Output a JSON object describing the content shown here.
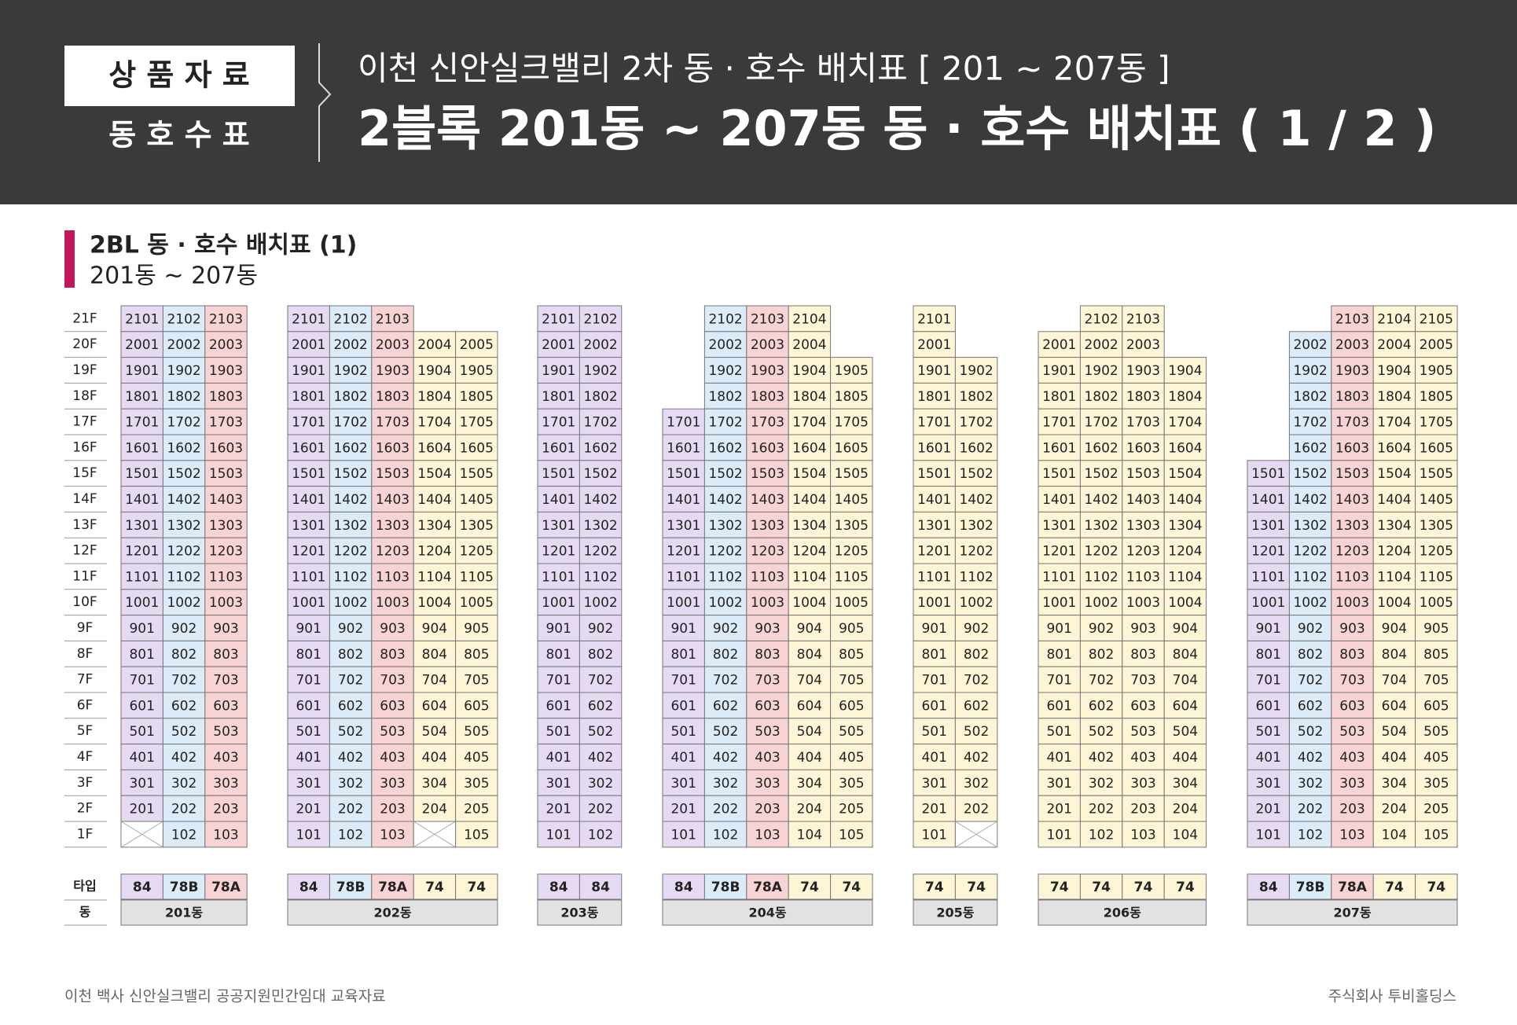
{
  "header": {
    "badge_top": "상 품 자 료",
    "badge_bottom": "동 호 수 표",
    "title": "이천 신안실크밸리 2차 동 · 호수 배치표 [ 201 ~ 207동 ]",
    "subtitle": "2블록 201동 ~ 207동 동 · 호수 배치표 ( 1 / 2 )"
  },
  "section": {
    "title": "2BL 동 · 호수 배치표 (1)",
    "subtitle": "201동 ~ 207동"
  },
  "floors": [
    "21F",
    "20F",
    "19F",
    "18F",
    "17F",
    "16F",
    "15F",
    "14F",
    "13F",
    "12F",
    "11F",
    "10F",
    "9F",
    "8F",
    "7F",
    "6F",
    "5F",
    "4F",
    "3F",
    "2F",
    "1F"
  ],
  "type_label": "타입",
  "building_label": "동",
  "type_colors": {
    "84": "#e6daf2",
    "78B": "#dbebf8",
    "78A": "#f7d3d3",
    "74": "#fdf5d6"
  },
  "buildings": [
    {
      "name": "201동",
      "types": [
        "84",
        "78B",
        "78A"
      ],
      "blocked": [
        [
          20,
          0
        ]
      ],
      "units": [
        [
          "2101",
          "2102",
          "2103"
        ],
        [
          "2001",
          "2002",
          "2003"
        ],
        [
          "1901",
          "1902",
          "1903"
        ],
        [
          "1801",
          "1802",
          "1803"
        ],
        [
          "1701",
          "1702",
          "1703"
        ],
        [
          "1601",
          "1602",
          "1603"
        ],
        [
          "1501",
          "1502",
          "1503"
        ],
        [
          "1401",
          "1402",
          "1403"
        ],
        [
          "1301",
          "1302",
          "1303"
        ],
        [
          "1201",
          "1202",
          "1203"
        ],
        [
          "1101",
          "1102",
          "1103"
        ],
        [
          "1001",
          "1002",
          "1003"
        ],
        [
          "901",
          "902",
          "903"
        ],
        [
          "801",
          "802",
          "803"
        ],
        [
          "701",
          "702",
          "703"
        ],
        [
          "601",
          "602",
          "603"
        ],
        [
          "501",
          "502",
          "503"
        ],
        [
          "401",
          "402",
          "403"
        ],
        [
          "301",
          "302",
          "303"
        ],
        [
          "201",
          "202",
          "203"
        ],
        [
          null,
          "102",
          "103"
        ]
      ]
    },
    {
      "name": "202동",
      "types": [
        "84",
        "78B",
        "78A",
        "74",
        "74"
      ],
      "blocked": [
        [
          20,
          3
        ]
      ],
      "units": [
        [
          "2101",
          "2102",
          "2103",
          null,
          null
        ],
        [
          "2001",
          "2002",
          "2003",
          "2004",
          "2005"
        ],
        [
          "1901",
          "1902",
          "1903",
          "1904",
          "1905"
        ],
        [
          "1801",
          "1802",
          "1803",
          "1804",
          "1805"
        ],
        [
          "1701",
          "1702",
          "1703",
          "1704",
          "1705"
        ],
        [
          "1601",
          "1602",
          "1603",
          "1604",
          "1605"
        ],
        [
          "1501",
          "1502",
          "1503",
          "1504",
          "1505"
        ],
        [
          "1401",
          "1402",
          "1403",
          "1404",
          "1405"
        ],
        [
          "1301",
          "1302",
          "1303",
          "1304",
          "1305"
        ],
        [
          "1201",
          "1202",
          "1203",
          "1204",
          "1205"
        ],
        [
          "1101",
          "1102",
          "1103",
          "1104",
          "1105"
        ],
        [
          "1001",
          "1002",
          "1003",
          "1004",
          "1005"
        ],
        [
          "901",
          "902",
          "903",
          "904",
          "905"
        ],
        [
          "801",
          "802",
          "803",
          "804",
          "805"
        ],
        [
          "701",
          "702",
          "703",
          "704",
          "705"
        ],
        [
          "601",
          "602",
          "603",
          "604",
          "605"
        ],
        [
          "501",
          "502",
          "503",
          "504",
          "505"
        ],
        [
          "401",
          "402",
          "403",
          "404",
          "405"
        ],
        [
          "301",
          "302",
          "303",
          "304",
          "305"
        ],
        [
          "201",
          "202",
          "203",
          "204",
          "205"
        ],
        [
          "101",
          "102",
          "103",
          null,
          "105"
        ]
      ]
    },
    {
      "name": "203동",
      "types": [
        "84",
        "84"
      ],
      "blocked": [],
      "units": [
        [
          "2101",
          "2102"
        ],
        [
          "2001",
          "2002"
        ],
        [
          "1901",
          "1902"
        ],
        [
          "1801",
          "1802"
        ],
        [
          "1701",
          "1702"
        ],
        [
          "1601",
          "1602"
        ],
        [
          "1501",
          "1502"
        ],
        [
          "1401",
          "1402"
        ],
        [
          "1301",
          "1302"
        ],
        [
          "1201",
          "1202"
        ],
        [
          "1101",
          "1102"
        ],
        [
          "1001",
          "1002"
        ],
        [
          "901",
          "902"
        ],
        [
          "801",
          "802"
        ],
        [
          "701",
          "702"
        ],
        [
          "601",
          "602"
        ],
        [
          "501",
          "502"
        ],
        [
          "401",
          "402"
        ],
        [
          "301",
          "302"
        ],
        [
          "201",
          "202"
        ],
        [
          "101",
          "102"
        ]
      ]
    },
    {
      "name": "204동",
      "types": [
        "84",
        "78B",
        "78A",
        "74",
        "74"
      ],
      "blocked": [],
      "units": [
        [
          null,
          "2102",
          "2103",
          "2104",
          null
        ],
        [
          null,
          "2002",
          "2003",
          "2004",
          null
        ],
        [
          null,
          "1902",
          "1903",
          "1904",
          "1905"
        ],
        [
          null,
          "1802",
          "1803",
          "1804",
          "1805"
        ],
        [
          "1701",
          "1702",
          "1703",
          "1704",
          "1705"
        ],
        [
          "1601",
          "1602",
          "1603",
          "1604",
          "1605"
        ],
        [
          "1501",
          "1502",
          "1503",
          "1504",
          "1505"
        ],
        [
          "1401",
          "1402",
          "1403",
          "1404",
          "1405"
        ],
        [
          "1301",
          "1302",
          "1303",
          "1304",
          "1305"
        ],
        [
          "1201",
          "1202",
          "1203",
          "1204",
          "1205"
        ],
        [
          "1101",
          "1102",
          "1103",
          "1104",
          "1105"
        ],
        [
          "1001",
          "1002",
          "1003",
          "1004",
          "1005"
        ],
        [
          "901",
          "902",
          "903",
          "904",
          "905"
        ],
        [
          "801",
          "802",
          "803",
          "804",
          "805"
        ],
        [
          "701",
          "702",
          "703",
          "704",
          "705"
        ],
        [
          "601",
          "602",
          "603",
          "604",
          "605"
        ],
        [
          "501",
          "502",
          "503",
          "504",
          "505"
        ],
        [
          "401",
          "402",
          "403",
          "404",
          "405"
        ],
        [
          "301",
          "302",
          "303",
          "304",
          "305"
        ],
        [
          "201",
          "202",
          "203",
          "204",
          "205"
        ],
        [
          "101",
          "102",
          "103",
          "104",
          "105"
        ]
      ]
    },
    {
      "name": "205동",
      "types": [
        "74",
        "74"
      ],
      "blocked": [
        [
          20,
          1
        ]
      ],
      "units": [
        [
          "2101",
          null
        ],
        [
          "2001",
          null
        ],
        [
          "1901",
          "1902"
        ],
        [
          "1801",
          "1802"
        ],
        [
          "1701",
          "1702"
        ],
        [
          "1601",
          "1602"
        ],
        [
          "1501",
          "1502"
        ],
        [
          "1401",
          "1402"
        ],
        [
          "1301",
          "1302"
        ],
        [
          "1201",
          "1202"
        ],
        [
          "1101",
          "1102"
        ],
        [
          "1001",
          "1002"
        ],
        [
          "901",
          "902"
        ],
        [
          "801",
          "802"
        ],
        [
          "701",
          "702"
        ],
        [
          "601",
          "602"
        ],
        [
          "501",
          "502"
        ],
        [
          "401",
          "402"
        ],
        [
          "301",
          "302"
        ],
        [
          "201",
          "202"
        ],
        [
          "101",
          null
        ]
      ]
    },
    {
      "name": "206동",
      "types": [
        "74",
        "74",
        "74",
        "74"
      ],
      "blocked": [],
      "units": [
        [
          null,
          "2102",
          "2103",
          null
        ],
        [
          "2001",
          "2002",
          "2003",
          null
        ],
        [
          "1901",
          "1902",
          "1903",
          "1904"
        ],
        [
          "1801",
          "1802",
          "1803",
          "1804"
        ],
        [
          "1701",
          "1702",
          "1703",
          "1704"
        ],
        [
          "1601",
          "1602",
          "1603",
          "1604"
        ],
        [
          "1501",
          "1502",
          "1503",
          "1504"
        ],
        [
          "1401",
          "1402",
          "1403",
          "1404"
        ],
        [
          "1301",
          "1302",
          "1303",
          "1304"
        ],
        [
          "1201",
          "1202",
          "1203",
          "1204"
        ],
        [
          "1101",
          "1102",
          "1103",
          "1104"
        ],
        [
          "1001",
          "1002",
          "1003",
          "1004"
        ],
        [
          "901",
          "902",
          "903",
          "904"
        ],
        [
          "801",
          "802",
          "803",
          "804"
        ],
        [
          "701",
          "702",
          "703",
          "704"
        ],
        [
          "601",
          "602",
          "603",
          "604"
        ],
        [
          "501",
          "502",
          "503",
          "504"
        ],
        [
          "401",
          "402",
          "403",
          "404"
        ],
        [
          "301",
          "302",
          "303",
          "304"
        ],
        [
          "201",
          "202",
          "203",
          "204"
        ],
        [
          "101",
          "102",
          "103",
          "104"
        ]
      ]
    },
    {
      "name": "207동",
      "types": [
        "84",
        "78B",
        "78A",
        "74",
        "74"
      ],
      "blocked": [],
      "units": [
        [
          null,
          null,
          "2103",
          "2104",
          "2105"
        ],
        [
          null,
          "2002",
          "2003",
          "2004",
          "2005"
        ],
        [
          null,
          "1902",
          "1903",
          "1904",
          "1905"
        ],
        [
          null,
          "1802",
          "1803",
          "1804",
          "1805"
        ],
        [
          null,
          "1702",
          "1703",
          "1704",
          "1705"
        ],
        [
          null,
          "1602",
          "1603",
          "1604",
          "1605"
        ],
        [
          "1501",
          "1502",
          "1503",
          "1504",
          "1505"
        ],
        [
          "1401",
          "1402",
          "1403",
          "1404",
          "1405"
        ],
        [
          "1301",
          "1302",
          "1303",
          "1304",
          "1305"
        ],
        [
          "1201",
          "1202",
          "1203",
          "1204",
          "1205"
        ],
        [
          "1101",
          "1102",
          "1103",
          "1104",
          "1105"
        ],
        [
          "1001",
          "1002",
          "1003",
          "1004",
          "1005"
        ],
        [
          "901",
          "902",
          "903",
          "904",
          "905"
        ],
        [
          "801",
          "802",
          "803",
          "804",
          "805"
        ],
        [
          "701",
          "702",
          "703",
          "704",
          "705"
        ],
        [
          "601",
          "602",
          "603",
          "604",
          "605"
        ],
        [
          "501",
          "502",
          "503",
          "504",
          "505"
        ],
        [
          "401",
          "402",
          "403",
          "404",
          "405"
        ],
        [
          "301",
          "302",
          "303",
          "304",
          "305"
        ],
        [
          "201",
          "202",
          "203",
          "204",
          "205"
        ],
        [
          "101",
          "102",
          "103",
          "104",
          "105"
        ]
      ]
    }
  ],
  "footer": {
    "left": "이천 백사 신안실크밸리 공공지원민간임대 교육자료",
    "right": "주식회사 투비홀딩스"
  }
}
